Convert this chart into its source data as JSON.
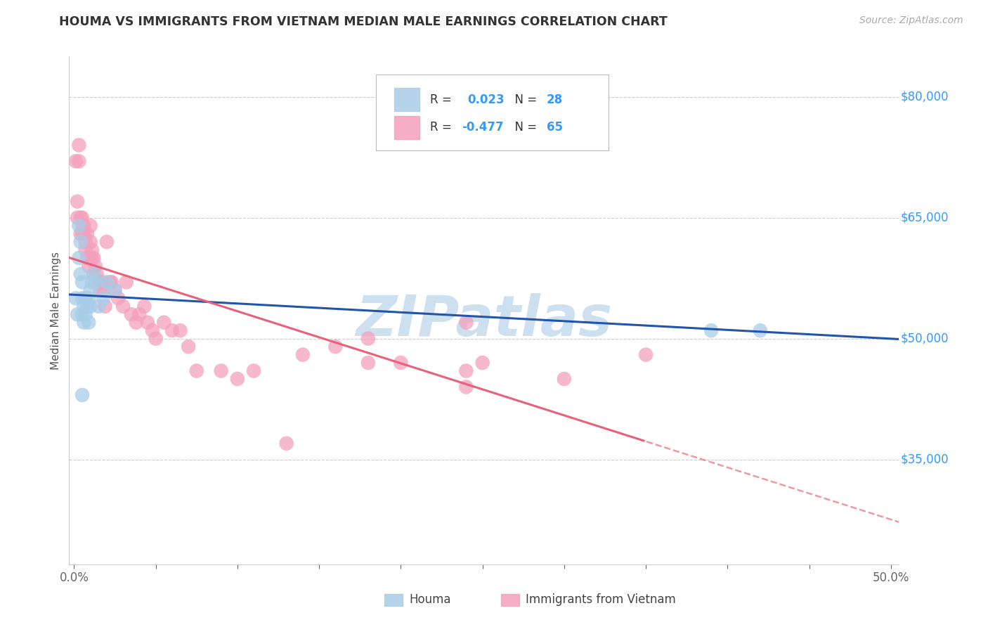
{
  "title": "HOUMA VS IMMIGRANTS FROM VIETNAM MEDIAN MALE EARNINGS CORRELATION CHART",
  "source": "Source: ZipAtlas.com",
  "ylabel": "Median Male Earnings",
  "y_ticks": [
    35000,
    50000,
    65000,
    80000
  ],
  "y_tick_labels": [
    "$35,000",
    "$50,000",
    "$65,000",
    "$80,000"
  ],
  "y_min": 22000,
  "y_max": 85000,
  "x_min": -0.003,
  "x_max": 0.505,
  "watermark": "ZIPatlas",
  "blue_color": "#a8cde8",
  "pink_color": "#f4a0bc",
  "line_blue": "#2255aa",
  "line_pink": "#e8607a",
  "tick_color": "#3399ff",
  "title_color": "#333333",
  "watermark_color": "#cce0f0",
  "houma_x": [
    0.001,
    0.002,
    0.003,
    0.003,
    0.004,
    0.004,
    0.005,
    0.005,
    0.005,
    0.006,
    0.006,
    0.007,
    0.007,
    0.008,
    0.009,
    0.009,
    0.01,
    0.01,
    0.011,
    0.012,
    0.013,
    0.015,
    0.018,
    0.02,
    0.025,
    0.39,
    0.42,
    0.005
  ],
  "houma_y": [
    55000,
    53000,
    64000,
    60000,
    62000,
    58000,
    57000,
    55000,
    53000,
    54000,
    52000,
    55000,
    53000,
    54000,
    55000,
    52000,
    56000,
    54000,
    57000,
    58000,
    57000,
    54000,
    55000,
    57000,
    56000,
    51000,
    51000,
    43000
  ],
  "vietnam_x": [
    0.001,
    0.002,
    0.002,
    0.003,
    0.003,
    0.004,
    0.004,
    0.005,
    0.005,
    0.005,
    0.006,
    0.006,
    0.007,
    0.007,
    0.008,
    0.008,
    0.009,
    0.009,
    0.01,
    0.01,
    0.011,
    0.011,
    0.012,
    0.012,
    0.013,
    0.014,
    0.015,
    0.016,
    0.017,
    0.018,
    0.019,
    0.02,
    0.022,
    0.023,
    0.025,
    0.027,
    0.03,
    0.032,
    0.035,
    0.038,
    0.04,
    0.043,
    0.045,
    0.048,
    0.05,
    0.055,
    0.06,
    0.065,
    0.07,
    0.075,
    0.09,
    0.1,
    0.11,
    0.14,
    0.16,
    0.18,
    0.2,
    0.24,
    0.25,
    0.3,
    0.35,
    0.24,
    0.18,
    0.13,
    0.24
  ],
  "vietnam_y": [
    72000,
    67000,
    65000,
    74000,
    72000,
    65000,
    63000,
    65000,
    64000,
    63000,
    64000,
    63000,
    62000,
    61000,
    63000,
    60000,
    60000,
    59000,
    62000,
    64000,
    61000,
    60000,
    60000,
    58000,
    59000,
    58000,
    57000,
    56000,
    57000,
    56000,
    54000,
    62000,
    57000,
    57000,
    56000,
    55000,
    54000,
    57000,
    53000,
    52000,
    53000,
    54000,
    52000,
    51000,
    50000,
    52000,
    51000,
    51000,
    49000,
    46000,
    46000,
    45000,
    46000,
    48000,
    49000,
    47000,
    47000,
    46000,
    47000,
    45000,
    48000,
    52000,
    50000,
    37000,
    44000
  ]
}
